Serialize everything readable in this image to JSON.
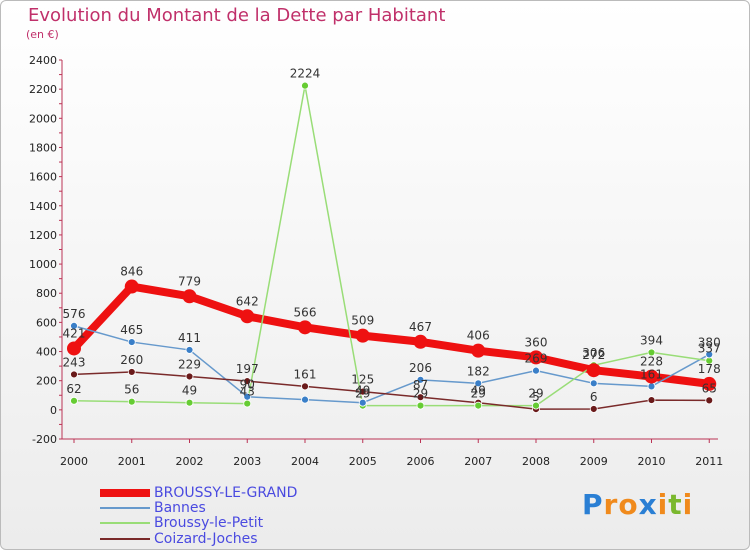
{
  "chart_data": {
    "type": "line",
    "title": "Evolution du Montant de la Dette par Habitant",
    "unit": "(en €)",
    "categories": [
      "2000",
      "2001",
      "2002",
      "2003",
      "2004",
      "2005",
      "2006",
      "2007",
      "2008",
      "2009",
      "2010",
      "2011"
    ],
    "ylim": [
      -200,
      2400
    ],
    "yticks": [
      -200,
      0,
      200,
      400,
      600,
      800,
      1000,
      1200,
      1400,
      1600,
      1800,
      2000,
      2200,
      2400
    ],
    "grid": false,
    "legend_position": "bottom-left",
    "series": [
      {
        "name": "BROUSSY-LE-GRAND",
        "color": "#ee1111",
        "width": 8,
        "point_color": "#ee1111",
        "values": [
          421,
          846,
          779,
          642,
          566,
          509,
          467,
          406,
          360,
          272,
          228,
          178
        ],
        "labels": [
          "421",
          "846",
          "779",
          "642",
          "566",
          "509",
          "467",
          "406",
          "360",
          "272",
          "228",
          "178"
        ]
      },
      {
        "name": "Bannes",
        "color": "#6699cc",
        "width": 1.5,
        "point_color": "#3a7fc8",
        "values": [
          576,
          465,
          411,
          90,
          70,
          49,
          206,
          182,
          269,
          182,
          161,
          380
        ],
        "labels": [
          "576",
          "465",
          "411",
          "90",
          "",
          "49",
          "206",
          "182",
          "269",
          "",
          "161",
          "380"
        ]
      },
      {
        "name": "Broussy-le-Petit",
        "color": "#99dd77",
        "width": 1.5,
        "point_color": "#66cc33",
        "values": [
          62,
          56,
          49,
          43,
          2224,
          29,
          29,
          29,
          29,
          306,
          394,
          337
        ],
        "labels": [
          "62",
          "56",
          "49",
          "43",
          "2224",
          "29",
          "29",
          "29",
          "29",
          "306",
          "394",
          "337"
        ]
      },
      {
        "name": "Coizard-Joches",
        "color": "#7a2a2a",
        "width": 1.5,
        "point_color": "#6a1a1a",
        "values": [
          243,
          260,
          229,
          197,
          161,
          125,
          87,
          49,
          5,
          6,
          67,
          65
        ],
        "labels": [
          "243",
          "260",
          "229",
          "197",
          "161",
          "125",
          "87",
          "49",
          "5",
          "6",
          "",
          "65"
        ]
      }
    ]
  },
  "logo": {
    "text": "Proxiti",
    "letters": [
      "P",
      "r",
      "o",
      "x",
      "i",
      "t",
      "i"
    ],
    "colors": [
      "#2a7fd4",
      "#f08a1c",
      "#f08a1c",
      "#2a7fd4",
      "#f08a1c",
      "#7ab82e",
      "#f08a1c"
    ]
  }
}
